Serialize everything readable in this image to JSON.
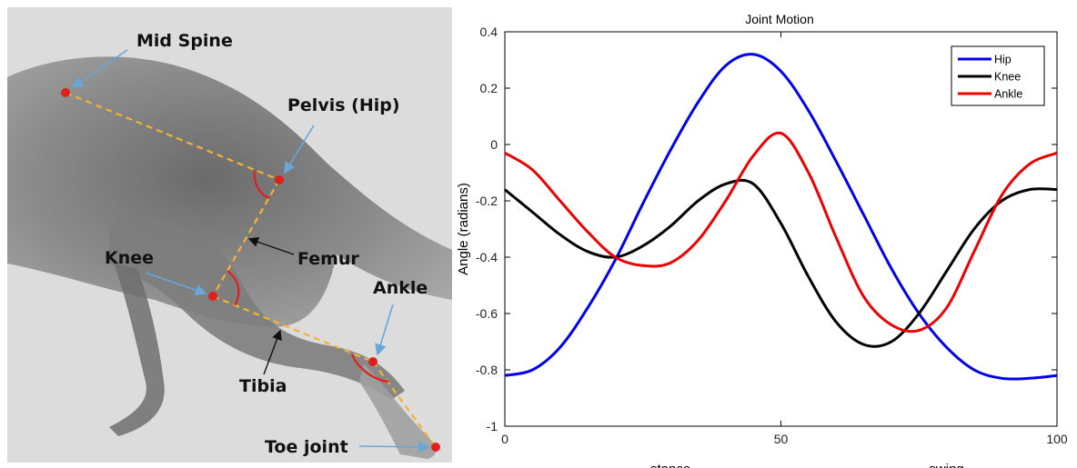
{
  "xray": {
    "labels": {
      "mid_spine": "Mid Spine",
      "pelvis": "Pelvis (Hip)",
      "femur": "Femur",
      "knee": "Knee",
      "ankle": "Ankle",
      "tibia": "Tibia",
      "toe_joint": "Toe joint"
    },
    "colors": {
      "joint": "#e0201c",
      "bone_line": "#f2b430",
      "angle_arc": "#e0201c",
      "pointer_arrow": "#6aa6d8",
      "label_arrow": "#111111"
    }
  },
  "chart_data": {
    "type": "line",
    "title": "Joint Motion",
    "xlabel": "",
    "ylabel": "Angle (radians)",
    "xlim": [
      0,
      100
    ],
    "ylim": [
      -1,
      0.4
    ],
    "xticks": [
      0,
      50,
      100
    ],
    "yticks": [
      0.4,
      0.2,
      0,
      -0.2,
      -0.4,
      -0.6,
      -0.8,
      -1
    ],
    "phase_labels": [
      {
        "text": "stance",
        "x": 30
      },
      {
        "text": "swing",
        "x": 80
      }
    ],
    "grid": false,
    "legend_position": "top-right",
    "x": [
      0,
      5,
      10,
      15,
      20,
      25,
      30,
      35,
      40,
      45,
      50,
      55,
      60,
      65,
      70,
      75,
      80,
      85,
      90,
      95,
      100
    ],
    "series": [
      {
        "name": "Hip",
        "color": "#0000ee",
        "values": [
          -0.82,
          -0.8,
          -0.72,
          -0.58,
          -0.41,
          -0.21,
          -0.02,
          0.15,
          0.28,
          0.32,
          0.26,
          0.12,
          -0.06,
          -0.25,
          -0.44,
          -0.6,
          -0.72,
          -0.8,
          -0.83,
          -0.83,
          -0.82
        ]
      },
      {
        "name": "Knee",
        "color": "#000000",
        "values": [
          -0.16,
          -0.24,
          -0.32,
          -0.38,
          -0.4,
          -0.36,
          -0.29,
          -0.2,
          -0.14,
          -0.14,
          -0.28,
          -0.47,
          -0.63,
          -0.71,
          -0.7,
          -0.6,
          -0.45,
          -0.3,
          -0.2,
          -0.16,
          -0.16
        ]
      },
      {
        "name": "Ankle",
        "color": "#ee0000",
        "values": [
          -0.03,
          -0.09,
          -0.2,
          -0.31,
          -0.4,
          -0.43,
          -0.42,
          -0.34,
          -0.2,
          -0.04,
          0.04,
          -0.1,
          -0.33,
          -0.54,
          -0.64,
          -0.66,
          -0.58,
          -0.38,
          -0.18,
          -0.07,
          -0.03
        ]
      }
    ]
  }
}
